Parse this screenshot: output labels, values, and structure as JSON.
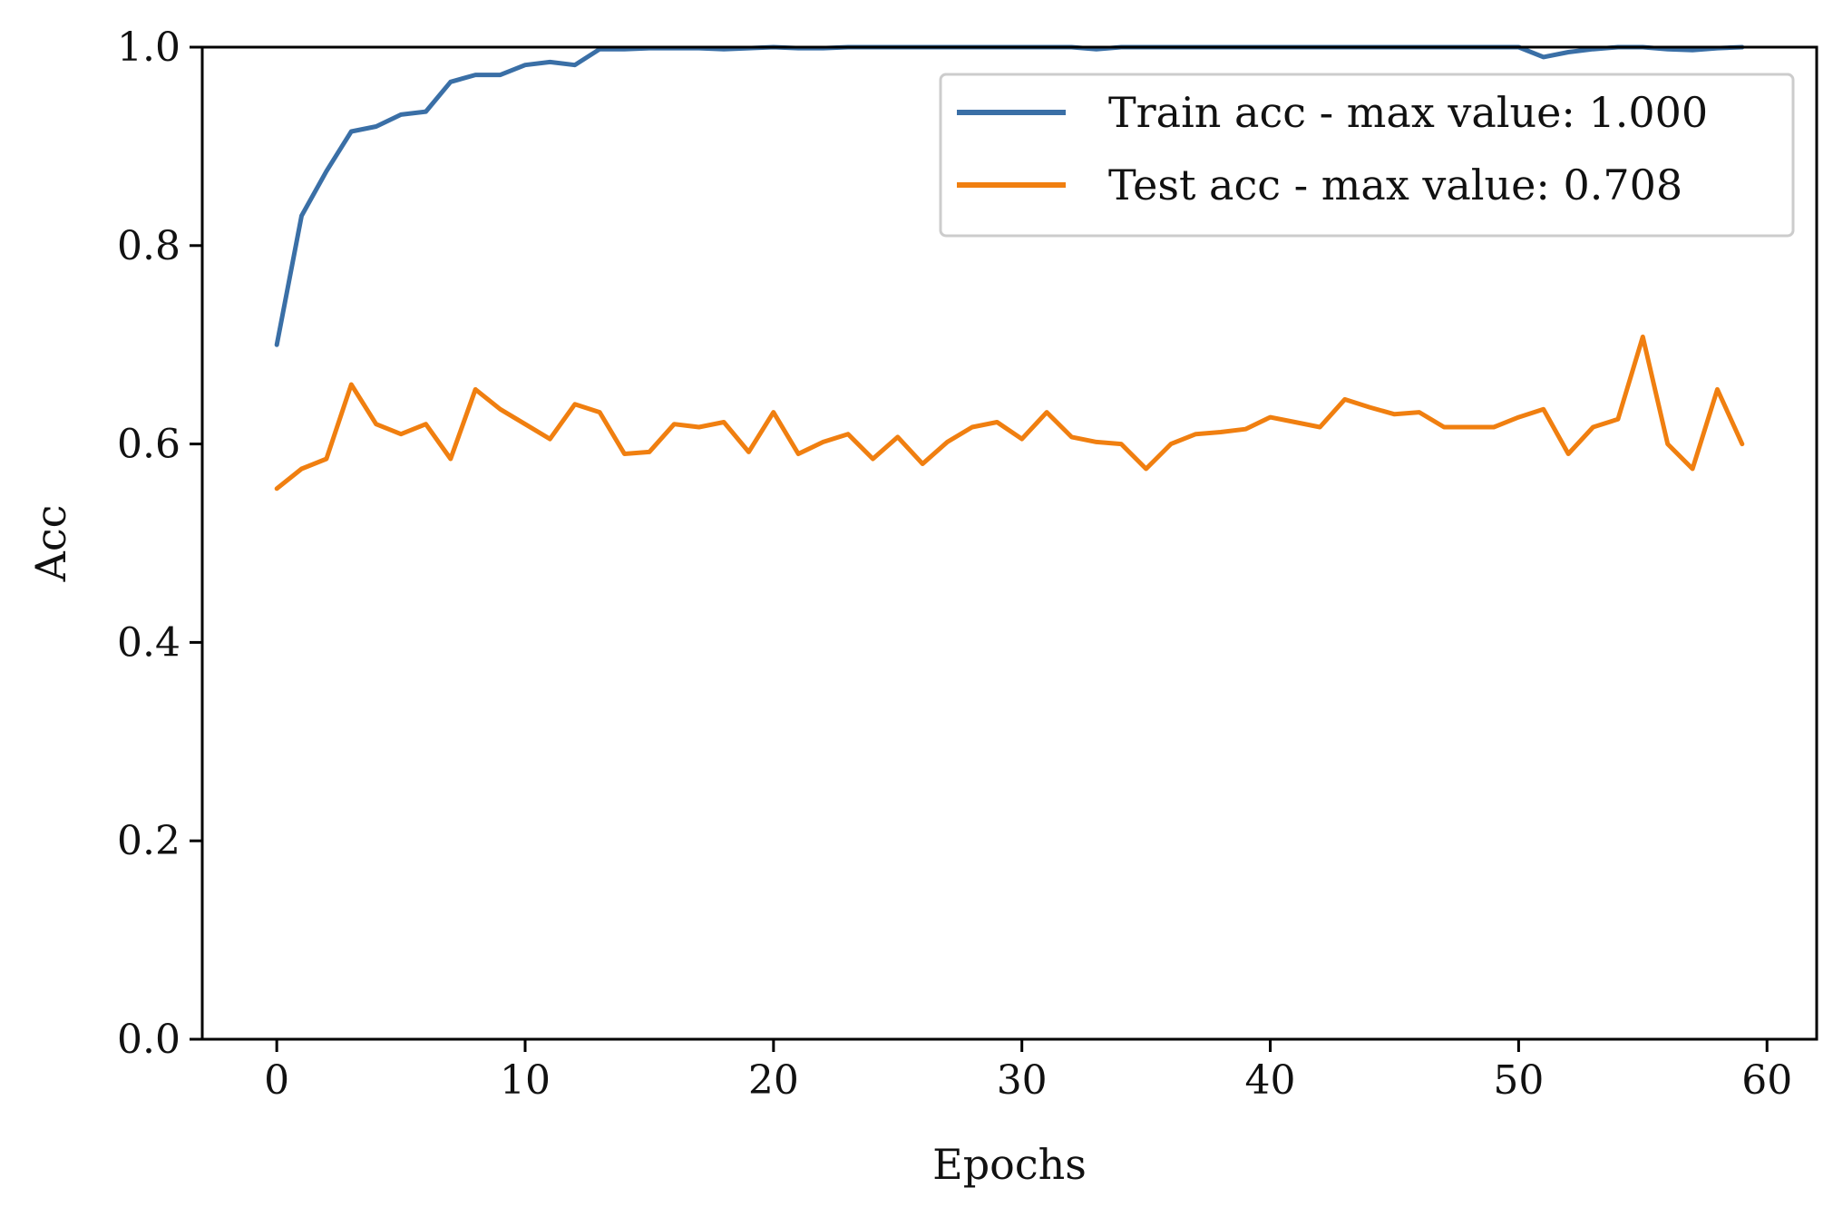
{
  "chart_data": {
    "type": "line",
    "title": "",
    "xlabel": "Epochs",
    "ylabel": "Acc",
    "xlim": [
      -3,
      62
    ],
    "ylim": [
      0.0,
      1.0
    ],
    "xticks": [
      0,
      10,
      20,
      30,
      40,
      50,
      60
    ],
    "xtick_labels": [
      "0",
      "10",
      "20",
      "30",
      "40",
      "50",
      "60"
    ],
    "yticks": [
      0.0,
      0.2,
      0.4,
      0.6,
      0.8,
      1.0
    ],
    "ytick_labels": [
      "0.0",
      "0.2",
      "0.4",
      "0.6",
      "0.8",
      "1.0"
    ],
    "grid": false,
    "legend_position": "top-right",
    "series": [
      {
        "name": "Train acc - max value: 1.000",
        "color": "#3a6fa6",
        "x": [
          0,
          1,
          2,
          3,
          4,
          5,
          6,
          7,
          8,
          9,
          10,
          11,
          12,
          13,
          14,
          15,
          16,
          17,
          18,
          19,
          20,
          21,
          22,
          23,
          24,
          25,
          26,
          27,
          28,
          29,
          30,
          31,
          32,
          33,
          34,
          35,
          36,
          37,
          38,
          39,
          40,
          41,
          42,
          43,
          44,
          45,
          46,
          47,
          48,
          49,
          50,
          51,
          52,
          53,
          54,
          55,
          56,
          57,
          58,
          59
        ],
        "values": [
          0.7,
          0.83,
          0.875,
          0.915,
          0.92,
          0.932,
          0.935,
          0.965,
          0.972,
          0.972,
          0.982,
          0.985,
          0.982,
          0.998,
          0.998,
          0.999,
          0.999,
          0.999,
          0.998,
          0.999,
          1.0,
          0.999,
          0.999,
          1.0,
          1.0,
          1.0,
          1.0,
          1.0,
          1.0,
          1.0,
          1.0,
          1.0,
          1.0,
          0.998,
          1.0,
          1.0,
          1.0,
          1.0,
          1.0,
          1.0,
          1.0,
          1.0,
          1.0,
          1.0,
          1.0,
          1.0,
          1.0,
          1.0,
          1.0,
          1.0,
          1.0,
          0.99,
          0.995,
          0.998,
          1.0,
          1.0,
          0.998,
          0.997,
          0.999,
          1.0
        ]
      },
      {
        "name": "Test acc - max value: 0.708",
        "color": "#f07f10",
        "x": [
          0,
          1,
          2,
          3,
          4,
          5,
          6,
          7,
          8,
          9,
          10,
          11,
          12,
          13,
          14,
          15,
          16,
          17,
          18,
          19,
          20,
          21,
          22,
          23,
          24,
          25,
          26,
          27,
          28,
          29,
          30,
          31,
          32,
          33,
          34,
          35,
          36,
          37,
          38,
          39,
          40,
          41,
          42,
          43,
          44,
          45,
          46,
          47,
          48,
          49,
          50,
          51,
          52,
          53,
          54,
          55,
          56,
          57,
          58,
          59
        ],
        "values": [
          0.555,
          0.575,
          0.585,
          0.66,
          0.62,
          0.61,
          0.62,
          0.585,
          0.655,
          0.635,
          0.62,
          0.605,
          0.64,
          0.632,
          0.59,
          0.592,
          0.62,
          0.617,
          0.622,
          0.592,
          0.632,
          0.59,
          0.602,
          0.61,
          0.585,
          0.607,
          0.58,
          0.602,
          0.617,
          0.622,
          0.605,
          0.632,
          0.607,
          0.602,
          0.6,
          0.575,
          0.6,
          0.61,
          0.612,
          0.615,
          0.627,
          0.622,
          0.617,
          0.645,
          0.637,
          0.63,
          0.632,
          0.617,
          0.617,
          0.617,
          0.627,
          0.635,
          0.59,
          0.617,
          0.625,
          0.708,
          0.6,
          0.575,
          0.655,
          0.6
        ]
      }
    ]
  }
}
